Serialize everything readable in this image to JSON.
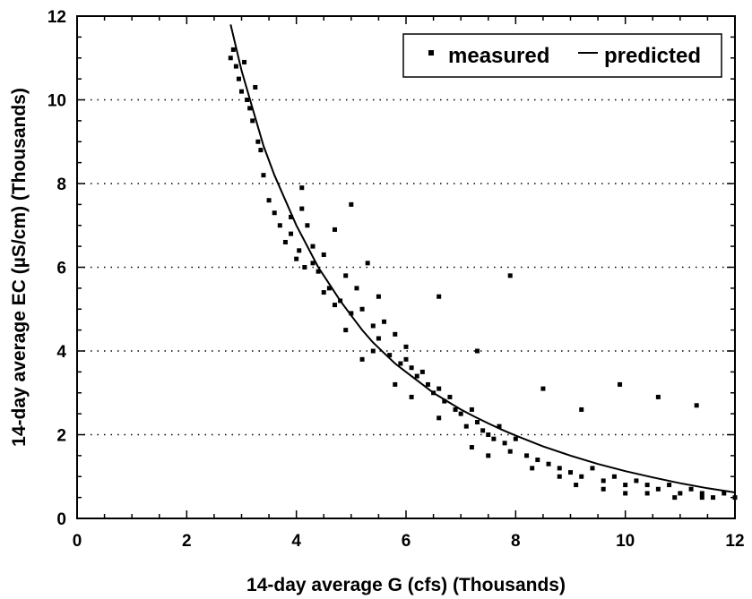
{
  "chart_data": {
    "type": "scatter",
    "xlabel": "14-day average G (cfs) (Thousands)",
    "ylabel": "14-day average EC (µS/cm) (Thousands)",
    "xlim": [
      0,
      12
    ],
    "ylim": [
      0,
      12
    ],
    "x_ticks": [
      "0",
      "2",
      "4",
      "6",
      "8",
      "10",
      "12"
    ],
    "y_ticks": [
      "0",
      "2",
      "4",
      "6",
      "8",
      "10",
      "12"
    ],
    "grid": "horizontal dotted",
    "legend_placement": "top-right",
    "colors": {
      "measured": "#000000",
      "predicted": "#000000"
    },
    "series": [
      {
        "name": "measured",
        "kind": "points",
        "x": [
          2.8,
          2.85,
          2.9,
          2.95,
          3.0,
          3.05,
          3.1,
          3.15,
          3.2,
          3.25,
          3.3,
          3.35,
          3.4,
          3.5,
          3.6,
          3.7,
          3.8,
          3.9,
          4.0,
          4.05,
          4.1,
          4.15,
          4.2,
          4.3,
          4.4,
          4.5,
          4.6,
          4.7,
          4.8,
          4.9,
          5.0,
          5.1,
          5.2,
          5.3,
          5.4,
          5.5,
          5.6,
          5.7,
          5.8,
          5.9,
          6.0,
          6.1,
          6.2,
          6.3,
          6.4,
          6.5,
          6.6,
          6.7,
          6.8,
          6.9,
          7.0,
          7.1,
          7.2,
          7.3,
          7.4,
          7.5,
          7.6,
          7.7,
          7.8,
          7.9,
          8.0,
          8.2,
          8.4,
          8.6,
          8.8,
          9.0,
          9.2,
          9.4,
          9.6,
          9.8,
          10.0,
          10.2,
          10.4,
          10.6,
          10.8,
          11.0,
          11.2,
          11.4,
          11.6,
          11.8,
          12.0,
          3.9,
          4.1,
          4.3,
          4.5,
          4.7,
          4.9,
          5.2,
          5.4,
          5.8,
          6.1,
          6.6,
          7.2,
          7.5,
          8.3,
          8.8,
          9.1,
          9.6,
          10.0,
          10.4,
          10.9,
          11.4,
          5.0,
          5.5,
          6.0,
          6.6,
          7.3,
          7.9,
          8.5,
          9.2,
          9.9,
          10.6,
          11.3
        ],
        "y": [
          11.0,
          11.2,
          10.8,
          10.5,
          10.2,
          10.9,
          10.0,
          9.8,
          9.5,
          10.3,
          9.0,
          8.8,
          8.2,
          7.6,
          7.3,
          7.0,
          6.6,
          6.8,
          6.2,
          6.4,
          7.9,
          6.0,
          7.0,
          6.5,
          5.9,
          6.3,
          5.5,
          6.9,
          5.2,
          5.8,
          4.9,
          5.5,
          5.0,
          6.1,
          4.6,
          4.3,
          4.7,
          3.9,
          4.4,
          3.7,
          3.8,
          3.6,
          3.4,
          3.5,
          3.2,
          3.0,
          3.1,
          2.8,
          2.9,
          2.6,
          2.5,
          2.2,
          2.6,
          2.3,
          2.1,
          2.0,
          1.9,
          2.2,
          1.8,
          1.6,
          1.9,
          1.5,
          1.4,
          1.3,
          1.2,
          1.1,
          1.0,
          1.2,
          0.9,
          1.0,
          0.8,
          0.9,
          0.8,
          0.7,
          0.8,
          0.6,
          0.7,
          0.6,
          0.5,
          0.6,
          0.5,
          7.2,
          7.4,
          6.1,
          5.4,
          5.1,
          4.5,
          3.8,
          4.0,
          3.2,
          2.9,
          2.4,
          1.7,
          1.5,
          1.2,
          1.0,
          0.8,
          0.7,
          0.6,
          0.6,
          0.5,
          0.5,
          7.5,
          5.3,
          4.1,
          5.3,
          4.0,
          5.8,
          3.1,
          2.6,
          3.2,
          2.9,
          2.7
        ]
      },
      {
        "name": "predicted",
        "kind": "line",
        "x": [
          2.8,
          3.0,
          3.2,
          3.4,
          3.6,
          3.8,
          4.0,
          4.2,
          4.4,
          4.6,
          4.8,
          5.0,
          5.2,
          5.4,
          5.6,
          5.8,
          6.0,
          6.25,
          6.5,
          6.75,
          7.0,
          7.25,
          7.5,
          7.75,
          8.0,
          8.5,
          9.0,
          9.5,
          10.0,
          10.5,
          11.0,
          11.5,
          12.0
        ],
        "y": [
          11.8,
          10.7,
          9.8,
          8.9,
          8.2,
          7.6,
          7.0,
          6.5,
          6.0,
          5.6,
          5.2,
          4.85,
          4.5,
          4.2,
          3.95,
          3.7,
          3.5,
          3.25,
          3.0,
          2.8,
          2.6,
          2.43,
          2.27,
          2.12,
          1.98,
          1.72,
          1.5,
          1.3,
          1.13,
          0.98,
          0.84,
          0.72,
          0.62
        ]
      }
    ]
  }
}
